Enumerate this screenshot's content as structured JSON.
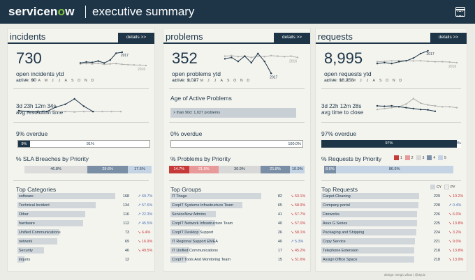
{
  "header": {
    "logo_a": "servicen",
    "logo_o": "o",
    "logo_b": "w",
    "title": "executive summary",
    "icon": "calendar-icon"
  },
  "details_label": "details >>",
  "months": [
    "J",
    "F",
    "M",
    "A",
    "M",
    "J",
    "J",
    "A",
    "S",
    "O",
    "N",
    "D"
  ],
  "incidents": {
    "title": "incidents",
    "count": "730",
    "count_label": "open incidents ytd",
    "active": "active: 60",
    "year_current": "2017",
    "year_prev": "2016",
    "resolution": "3d 23h 12m 34s",
    "resolution_label": "avg resolution time",
    "overdue": "9%  overdue",
    "overdue_pct": 9,
    "overdue_in": "9%",
    "overdue_out": "91%",
    "sla_title": "% SLA Breaches by Priority",
    "sla": [
      {
        "label": "46.8%",
        "value": 46.8
      },
      {
        "label": "29.6%",
        "value": 29.6
      },
      {
        "label": "17.6%",
        "value": 17.6
      }
    ],
    "top_title": "Top Categories",
    "top": [
      {
        "name": "software",
        "value": "168",
        "trend": "↗ 69.7%",
        "dir": "up",
        "share": 1.0
      },
      {
        "name": "Technical Incident",
        "value": "134",
        "trend": "↗ 57.6%",
        "dir": "up",
        "share": 0.8
      },
      {
        "name": "Other",
        "value": "116",
        "trend": "↗ 22.3%",
        "dir": "up",
        "share": 0.69
      },
      {
        "name": "hardware",
        "value": "112",
        "trend": "↗ 45.5%",
        "dir": "up",
        "share": 0.67
      },
      {
        "name": "Unified Communications",
        "value": "73",
        "trend": "↘ 6.4%",
        "dir": "down",
        "share": 0.43
      },
      {
        "name": "network",
        "value": "69",
        "trend": "↘ 16.9%",
        "dir": "down",
        "share": 0.41
      },
      {
        "name": "Security",
        "value": "46",
        "trend": "↘ 49.5%",
        "dir": "down",
        "share": 0.27
      },
      {
        "name": "inquiry",
        "value": "12",
        "trend": "",
        "dir": "up",
        "share": 0.07
      }
    ]
  },
  "problems": {
    "title": "problems",
    "count": "352",
    "count_label": "open problems ytd",
    "active": "active: 1,027",
    "year_current": "2017",
    "year_prev": "2016",
    "age_title": "Age of Active Problems",
    "age_bar": "> than 90d: 1,027 problems",
    "overdue": "0% overdue",
    "overdue_pct": 0,
    "overdue_out": "100.0%",
    "pri_title": "% Problems by Priority",
    "pri": [
      {
        "label": "14.7%",
        "value": 14.7
      },
      {
        "label": "21.9%",
        "value": 21.9
      },
      {
        "label": "30.9%",
        "value": 30.9
      },
      {
        "label": "21.8%",
        "value": 21.8
      },
      {
        "label": "10.9%",
        "value": 10.9
      }
    ],
    "top_title": "Top Groups",
    "top": [
      {
        "name": "IT Triage",
        "value": "82",
        "trend": "↘ 53.1%",
        "dir": "down",
        "share": 1.0
      },
      {
        "name": "CorpIT Systems Infrastructure Team",
        "value": "65",
        "trend": "↘ 58.9%",
        "dir": "down",
        "share": 0.79
      },
      {
        "name": "ServiceNow Admins",
        "value": "41",
        "trend": "↘ 57.7%",
        "dir": "down",
        "share": 0.5
      },
      {
        "name": "CorpIT Network Infrastructure Team",
        "value": "40",
        "trend": "↘ 57.0%",
        "dir": "down",
        "share": 0.49
      },
      {
        "name": "CorpIT Desktop Support",
        "value": "26",
        "trend": "↘ 58.1%",
        "dir": "down",
        "share": 0.32
      },
      {
        "name": "IT Regional Support EMEA",
        "value": "40",
        "trend": "↗ 5.3%",
        "dir": "up",
        "share": 0.49
      },
      {
        "name": "IT Unified Communications",
        "value": "17",
        "trend": "↘ 45.2%",
        "dir": "down",
        "share": 0.21
      },
      {
        "name": "CorpIT Tools And Monitoring Team",
        "value": "15",
        "trend": "↘ 51.6%",
        "dir": "down",
        "share": 0.18
      }
    ]
  },
  "requests": {
    "title": "requests",
    "count": "8,995",
    "count_label": "open requests ytd",
    "active": "active: 18,258",
    "year_current": "2017",
    "year_prev": "2016",
    "close": "3d 22h 12m 28s",
    "close_label": "avg time to close",
    "overdue": "97% overdue",
    "overdue_pct": 97,
    "overdue_in": "97%",
    "overdue_out": "3%",
    "pri_title": "% Requests by Priority",
    "legend": [
      "1",
      "2",
      "3",
      "4",
      "5"
    ],
    "pri": [
      {
        "label": "8.6%",
        "value": 8.6
      },
      {
        "label": "86.6%",
        "value": 86.6
      }
    ],
    "cy": "CY",
    "py": "PY",
    "top_title": "Top Requests",
    "top": [
      {
        "name": "Carpet Cleaning",
        "value": "229",
        "trend": "↘ 10.2%",
        "dir": "down",
        "share": 1.0
      },
      {
        "name": "Company portal",
        "value": "228",
        "trend": "↗ 0.4%",
        "dir": "up",
        "share": 0.99
      },
      {
        "name": "Fireworks",
        "value": "226",
        "trend": "↘ 6.0%",
        "dir": "down",
        "share": 0.98
      },
      {
        "name": "Asus G Series",
        "value": "225",
        "trend": "↘ 13.8%",
        "dir": "down",
        "share": 0.98
      },
      {
        "name": "Packaging and Shipping",
        "value": "224",
        "trend": "↘ 3.2%",
        "dir": "down",
        "share": 0.97
      },
      {
        "name": "Copy Service",
        "value": "221",
        "trend": "↘ 9.0%",
        "dir": "down",
        "share": 0.96
      },
      {
        "name": "Telephone Extension",
        "value": "218",
        "trend": "↘ 13.8%",
        "dir": "down",
        "share": 0.95
      },
      {
        "name": "Assign Office Space",
        "value": "218",
        "trend": "↘ 13.9%",
        "dir": "down",
        "share": 0.95
      }
    ]
  },
  "colors": {
    "navy": "#1d3547",
    "grey_bar": "#d0d6da",
    "line_prev": "#b0b0b0"
  },
  "sparks": {
    "inc_top": {
      "cur": [
        0.45,
        0.5,
        0.48,
        0.55,
        0.45,
        0.6,
        0.95,
        1.0
      ],
      "prev": [
        0.4,
        0.42,
        0.4,
        0.43,
        0.38,
        0.4,
        0.42,
        0.38,
        0.36,
        0.35,
        0.34,
        0.32
      ]
    },
    "inc_bot": {
      "cur": [
        0.35,
        0.3,
        0.28,
        0.3,
        0.55,
        0.7,
        1.0,
        0.6,
        0.3
      ],
      "prev": [
        0.3,
        0.3,
        0.3,
        0.28,
        0.3,
        0.3,
        0.28,
        0.3,
        0.3,
        0.3,
        0.3,
        0.3
      ]
    },
    "prob_top": {
      "cur": [
        0.7,
        0.75,
        0.6,
        0.8,
        0.55,
        0.9,
        0.6,
        0.15
      ],
      "prev": [
        0.8,
        0.82,
        0.78,
        0.8,
        0.75,
        0.8,
        0.78,
        0.82,
        0.8,
        0.78,
        0.8,
        0.75
      ]
    },
    "req_top": {
      "cur": [
        0.3,
        0.35,
        0.3,
        0.4,
        0.45,
        0.6,
        0.85,
        1.0
      ],
      "prev": [
        0.4,
        0.42,
        0.45,
        0.45,
        0.46,
        0.44,
        0.45,
        0.42,
        0.4,
        0.4,
        0.38,
        0.35
      ]
    },
    "req_bot": {
      "cur": [
        0.5,
        0.48,
        0.5,
        0.45,
        0.4,
        0.35,
        0.3,
        0.28,
        0.2
      ],
      "prev": [
        0.3,
        0.35,
        0.4,
        0.45,
        0.6,
        0.9,
        0.65,
        0.55,
        0.5,
        0.45,
        0.45,
        0.4
      ]
    }
  },
  "footer": "design: Sergio Zhao | @IQuiz"
}
